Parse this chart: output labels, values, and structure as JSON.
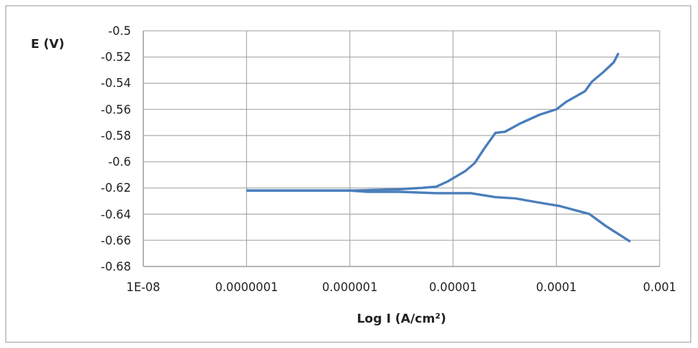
{
  "chart_data": {
    "type": "line",
    "xlabel": "Log I (A/cm²)",
    "ylabel": "E (V)",
    "series": [
      {
        "color": "#4a7ebb",
        "x": [
          1e-07,
          1e-06,
          3e-06,
          5e-06,
          6.9e-06,
          8.9e-06,
          1.32e-05,
          1.62e-05,
          2e-05,
          2.57e-05,
          3.2e-05,
          4.4e-05,
          6.9e-05,
          0.0001,
          0.000126,
          0.00019,
          0.00022,
          0.00029,
          0.00036,
          0.0004
        ],
        "values": [
          -0.622,
          -0.622,
          -0.621,
          -0.62,
          -0.619,
          -0.615,
          -0.607,
          -0.601,
          -0.59,
          -0.578,
          -0.577,
          -0.571,
          -0.564,
          -0.56,
          -0.554,
          -0.546,
          -0.539,
          -0.531,
          -0.524,
          -0.517
        ]
      },
      {
        "color": "#4a7ebb",
        "x": [
          1e-07,
          1e-06,
          1.5e-06,
          3e-06,
          6.9e-06,
          1.48e-05,
          2.57e-05,
          4e-05,
          6.6e-05,
          0.00011,
          0.00021,
          0.0003,
          0.00052
        ],
        "values": [
          -0.622,
          -0.622,
          -0.623,
          -0.623,
          -0.624,
          -0.624,
          -0.627,
          -0.628,
          -0.631,
          -0.634,
          -0.64,
          -0.649,
          -0.661
        ]
      }
    ],
    "log": "x",
    "xlim": [
      1e-08,
      0.001
    ],
    "xticks": [
      {
        "value": 1e-08,
        "label": "1E-08"
      },
      {
        "value": 1e-07,
        "label": "0.0000001"
      },
      {
        "value": 1e-06,
        "label": "0.000001"
      },
      {
        "value": 1e-05,
        "label": "0.00001"
      },
      {
        "value": 0.0001,
        "label": "0.0001"
      },
      {
        "value": 0.001,
        "label": "0.001"
      }
    ],
    "ylim": [
      -0.68,
      -0.5
    ],
    "yticks": [
      -0.68,
      -0.66,
      -0.64,
      -0.62,
      -0.6,
      -0.58,
      -0.56,
      -0.54,
      -0.52,
      -0.5
    ],
    "grid": true,
    "marker": "none",
    "line_style": "solid"
  }
}
